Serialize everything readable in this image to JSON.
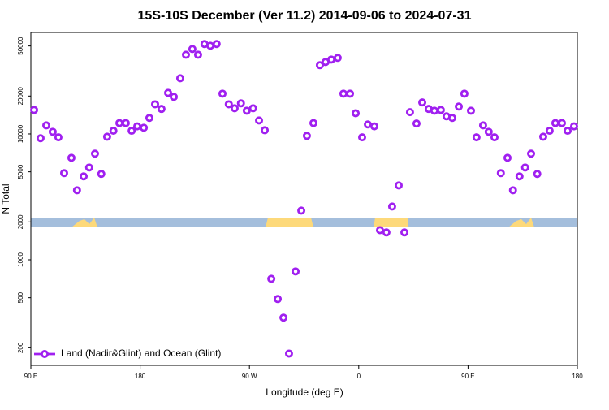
{
  "chart_data": {
    "type": "scatter",
    "title": "15S-10S December (Ver 11.2)   2014-09-06 to 2024-07-31",
    "x_label": "Longitude (deg E)",
    "y_label": "N Total",
    "ylog": true,
    "legend": "lower left",
    "xlim": [
      90,
      540
    ],
    "ylim": [
      145,
      64000
    ],
    "xticks": [
      {
        "value": 90,
        "label": "90 E"
      },
      {
        "value": 180,
        "label": "180"
      },
      {
        "value": 270,
        "label": "90 W"
      },
      {
        "value": 360,
        "label": "0"
      },
      {
        "value": 450,
        "label": "90 E"
      },
      {
        "value": 540,
        "label": "180"
      }
    ],
    "yticks": [
      200,
      500,
      1000,
      2000,
      5000,
      10000,
      20000,
      50000
    ],
    "series": [
      {
        "name": "Land (Nadir&Glint) and Ocean (Glint)",
        "color": "#a020f0",
        "x": [
          92.7,
          98,
          102.7,
          108,
          112.7,
          117.4,
          123.4,
          128,
          133.5,
          138,
          142.8,
          148,
          152.8,
          158,
          162.9,
          168.2,
          173,
          177.6,
          183,
          187.6,
          192.3,
          197.6,
          203,
          207.7,
          213,
          217.7,
          223,
          227.7,
          233,
          237.8,
          243,
          247.8,
          253,
          257.8,
          263,
          267.8,
          273,
          277.9,
          282.6,
          288,
          293.3,
          298,
          302.6,
          308,
          312.7,
          317.3,
          322.7,
          328,
          332.7,
          337.4,
          342.7,
          347.4,
          352.8,
          357.5,
          362.8,
          367.5,
          372.8,
          377.5,
          382.8,
          387.5,
          392.9,
          397.6,
          402.2,
          407.6,
          412.3,
          417.6,
          422.3,
          427.6,
          432.3,
          437,
          442.4,
          447,
          452.4,
          457,
          462.4,
          467,
          471.8,
          477,
          482.5,
          487,
          492.4,
          497,
          501.9,
          507,
          511.9,
          517.2,
          521.9,
          527.3,
          532,
          537.3
        ],
        "values": [
          15500,
          9250,
          11700,
          10400,
          9400,
          4880,
          6460,
          3570,
          4600,
          5410,
          6970,
          4810,
          9500,
          10600,
          12200,
          12200,
          10600,
          11500,
          11200,
          13400,
          17200,
          15800,
          21200,
          19700,
          27700,
          42600,
          47300,
          42600,
          51800,
          50200,
          51800,
          20900,
          17200,
          16000,
          17500,
          15300,
          16000,
          12800,
          10700,
          706,
          488,
          347,
          180,
          808,
          2460,
          9660,
          12200,
          35200,
          37300,
          39000,
          40200,
          20900,
          20900,
          14600,
          9400,
          11900,
          11500,
          1720,
          1650,
          2650,
          3900,
          1650,
          14900,
          12100,
          17800,
          15800,
          15300,
          15500,
          13800,
          13400,
          16500,
          20900,
          15300,
          9400,
          11700,
          10400,
          9400,
          4880,
          6460,
          3570,
          4600,
          5410,
          6970,
          4810,
          9500,
          10600,
          12200,
          12200,
          10600,
          11500
        ]
      }
    ]
  }
}
